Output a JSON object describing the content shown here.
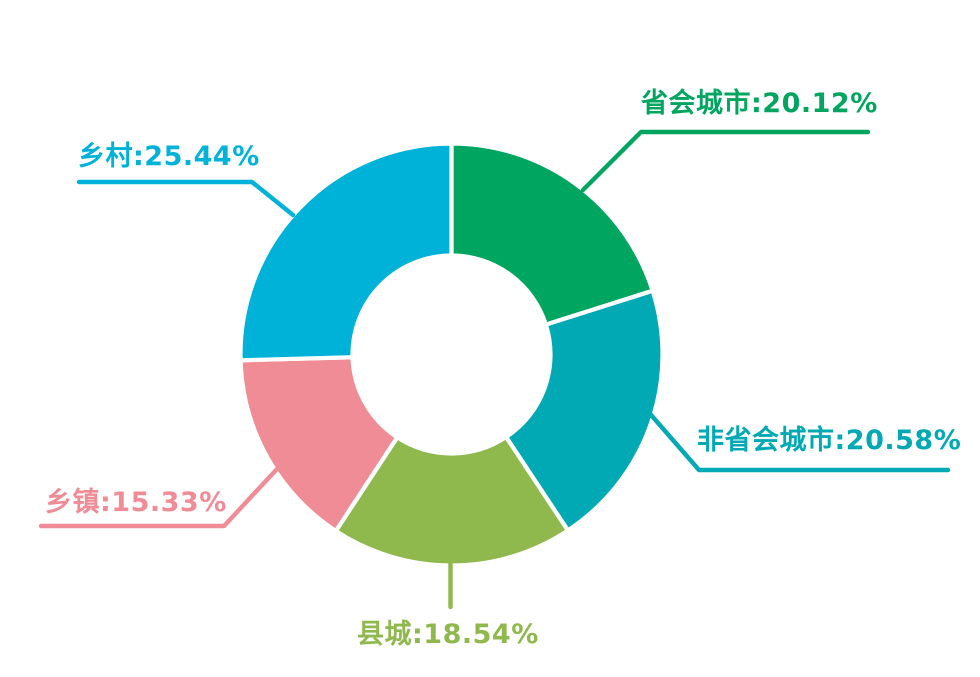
{
  "background_color": "#ffffff",
  "chart_data": {
    "type": "pie",
    "subtype": "donut",
    "title": "",
    "legend_position": "none",
    "labels_style": "leader-line callouts",
    "categories": [
      "省会城市",
      "非省会城市",
      "县城",
      "乡镇",
      "乡村"
    ],
    "values": [
      20.12,
      20.58,
      18.54,
      15.33,
      25.44
    ],
    "unit": "%",
    "colors": [
      "#00a65f",
      "#00a9b4",
      "#8fb84d",
      "#f08c96",
      "#00b2d8"
    ],
    "label_texts": [
      "省会城市:20.12%",
      "非省会城市:20.58%",
      "县城:18.54%",
      "乡镇:15.33%",
      "乡村:25.44%"
    ],
    "start_angle_deg": 0,
    "direction": "clockwise",
    "hole_color": "#ffffff",
    "slice_gap_color": "#ffffff"
  }
}
